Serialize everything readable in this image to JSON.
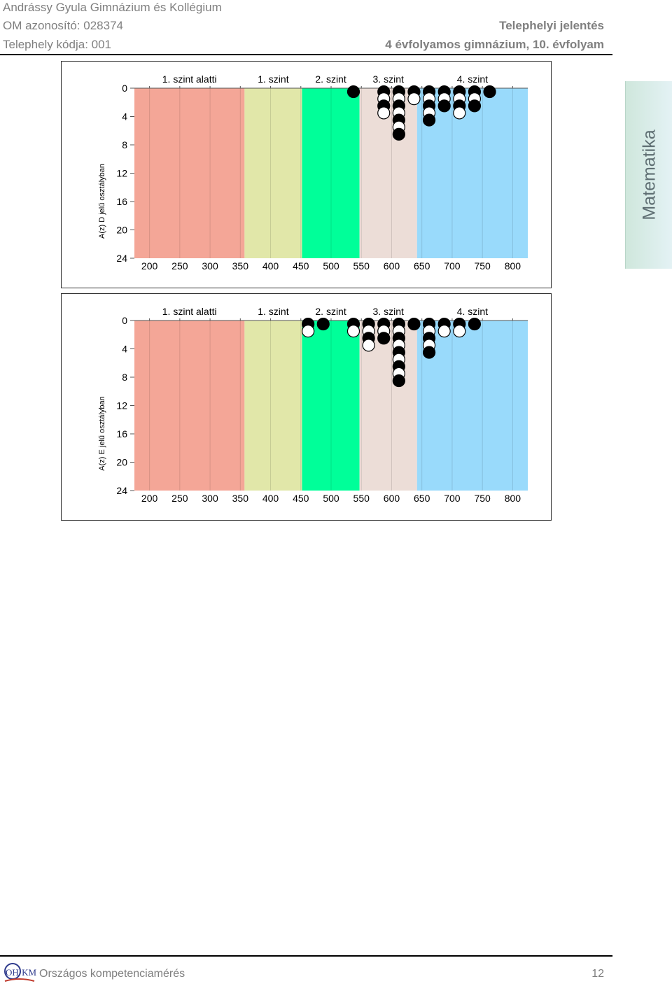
{
  "header": {
    "school": "Andrássy Gyula Gimnázium és Kollégium",
    "om_id": "OM azonosító: 028374",
    "site_code": "Telephely kódja: 001",
    "report_type": "Telephelyi jelentés",
    "grade": "4 évfolyamos gimnázium, 10. évfolyam"
  },
  "side_tab": {
    "label": "Matematika"
  },
  "footer": {
    "label": "Országos kompetenciamérés",
    "page": "12",
    "logo_text": "OH·KM"
  },
  "colors": {
    "below_level1": "#f4a697",
    "level1": "#e1e7a9",
    "level2": "#00ff99",
    "level3": "#ecddd7",
    "level4": "#99dafb"
  },
  "chart_data": [
    {
      "type": "scatter",
      "ylabel": "A(z) D jelű osztályban",
      "xlim": [
        175,
        825
      ],
      "ylim": [
        24,
        0
      ],
      "x_ticks": [
        "200",
        "250",
        "300",
        "350",
        "400",
        "450",
        "500",
        "550",
        "600",
        "650",
        "700",
        "750",
        "800"
      ],
      "y_ticks": [
        "0",
        "4",
        "8",
        "12",
        "16",
        "20",
        "24"
      ],
      "grid": true,
      "bands": [
        {
          "label": "1. szint alatti",
          "from": 175,
          "to": 357,
          "color": "#f4a697"
        },
        {
          "label": "1. szint",
          "from": 357,
          "to": 452,
          "color": "#e1e7a9"
        },
        {
          "label": "2. szint",
          "from": 452,
          "to": 547,
          "color": "#00ff99"
        },
        {
          "label": "3. szint",
          "from": 547,
          "to": 642,
          "color": "#ecddd7"
        },
        {
          "label": "4. szint",
          "from": 642,
          "to": 825,
          "color": "#99dafb"
        }
      ],
      "columns": [
        {
          "x": 537,
          "dots": [
            "black"
          ]
        },
        {
          "x": 587,
          "dots": [
            "black",
            "white",
            "black",
            "white"
          ]
        },
        {
          "x": 612,
          "dots": [
            "black",
            "white",
            "black",
            "white",
            "black",
            "white",
            "black"
          ]
        },
        {
          "x": 637,
          "dots": [
            "black",
            "white"
          ]
        },
        {
          "x": 662,
          "dots": [
            "black",
            "white",
            "black",
            "white",
            "black"
          ]
        },
        {
          "x": 687,
          "dots": [
            "black",
            "white",
            "black"
          ]
        },
        {
          "x": 712,
          "dots": [
            "black",
            "white",
            "black",
            "white"
          ]
        },
        {
          "x": 737,
          "dots": [
            "black",
            "white",
            "black"
          ]
        },
        {
          "x": 762,
          "dots": [
            "black"
          ]
        }
      ]
    },
    {
      "type": "scatter",
      "ylabel": "A(z) E jelű osztályban",
      "xlim": [
        175,
        825
      ],
      "ylim": [
        24,
        0
      ],
      "x_ticks": [
        "200",
        "250",
        "300",
        "350",
        "400",
        "450",
        "500",
        "550",
        "600",
        "650",
        "700",
        "750",
        "800"
      ],
      "y_ticks": [
        "0",
        "4",
        "8",
        "12",
        "16",
        "20",
        "24"
      ],
      "grid": true,
      "bands": [
        {
          "label": "1. szint alatti",
          "from": 175,
          "to": 357,
          "color": "#f4a697"
        },
        {
          "label": "1. szint",
          "from": 357,
          "to": 452,
          "color": "#e1e7a9"
        },
        {
          "label": "2. szint",
          "from": 452,
          "to": 547,
          "color": "#00ff99"
        },
        {
          "label": "3. szint",
          "from": 547,
          "to": 642,
          "color": "#ecddd7"
        },
        {
          "label": "4. szint",
          "from": 642,
          "to": 825,
          "color": "#99dafb"
        }
      ],
      "columns": [
        {
          "x": 462,
          "dots": [
            "black",
            "white"
          ]
        },
        {
          "x": 487,
          "dots": [
            "black"
          ]
        },
        {
          "x": 537,
          "dots": [
            "black",
            "white"
          ]
        },
        {
          "x": 562,
          "dots": [
            "black",
            "white",
            "black",
            "white"
          ]
        },
        {
          "x": 587,
          "dots": [
            "black",
            "white",
            "black"
          ]
        },
        {
          "x": 612,
          "dots": [
            "black",
            "white",
            "black",
            "white",
            "black",
            "white",
            "black",
            "white",
            "black"
          ]
        },
        {
          "x": 637,
          "dots": [
            "black"
          ]
        },
        {
          "x": 662,
          "dots": [
            "black",
            "white",
            "black",
            "white",
            "black"
          ]
        },
        {
          "x": 687,
          "dots": [
            "black",
            "white"
          ]
        },
        {
          "x": 712,
          "dots": [
            "black",
            "white"
          ]
        },
        {
          "x": 737,
          "dots": [
            "black"
          ]
        }
      ]
    }
  ]
}
